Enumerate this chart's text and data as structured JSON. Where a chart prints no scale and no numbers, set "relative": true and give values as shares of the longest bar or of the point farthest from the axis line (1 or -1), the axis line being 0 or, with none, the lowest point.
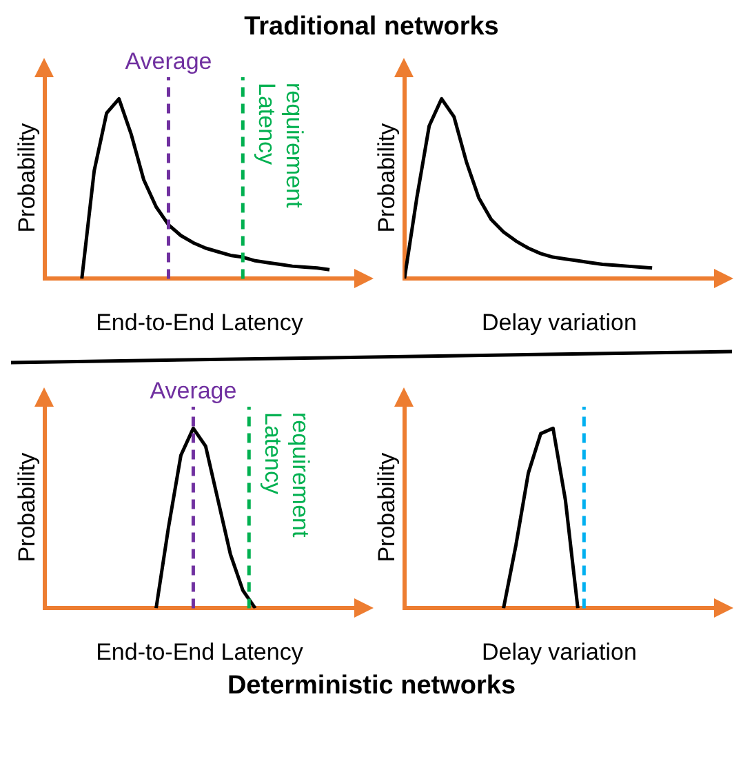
{
  "chart_data": [
    {
      "type": "line",
      "title": "Traditional networks",
      "xlabel": "End-to-End Latency",
      "ylabel": "Probability",
      "relative": true,
      "marker": "none",
      "annotations": [
        "Average",
        "Latency requirement"
      ],
      "categories": [
        null,
        null,
        null,
        null,
        null,
        null,
        null,
        null,
        null,
        null,
        null,
        null,
        null,
        null,
        null,
        null,
        null,
        null,
        null,
        null,
        null
      ],
      "series": [
        {
          "color": "#000000",
          "values": [
            0,
            0.6,
            0.92,
            1,
            0.8,
            0.55,
            0.4,
            0.3,
            0.24,
            0.2,
            0.17,
            0.15,
            0.13,
            0.12,
            0.1,
            0.09,
            0.08,
            0.07,
            0.065,
            0.06,
            0.05
          ]
        }
      ]
    },
    {
      "type": "line",
      "xlabel": "Delay variation",
      "ylabel": "Probability",
      "relative": true,
      "marker": "none",
      "categories": [
        null,
        null,
        null,
        null,
        null,
        null,
        null,
        null,
        null,
        null,
        null,
        null,
        null,
        null,
        null,
        null,
        null,
        null,
        null,
        null,
        null
      ],
      "series": [
        {
          "color": "#000000",
          "values": [
            0,
            0.45,
            0.85,
            1,
            0.9,
            0.65,
            0.45,
            0.33,
            0.26,
            0.21,
            0.17,
            0.14,
            0.12,
            0.11,
            0.1,
            0.09,
            0.08,
            0.075,
            0.07,
            0.065,
            0.06
          ]
        }
      ]
    },
    {
      "type": "line",
      "title": "Deterministic networks",
      "xlabel": "End-to-End Latency",
      "ylabel": "Probability",
      "relative": true,
      "marker": "none",
      "annotations": [
        "Average",
        "Latency requirement"
      ],
      "categories": [
        null,
        null,
        null,
        null,
        null,
        null,
        null,
        null,
        null
      ],
      "series": [
        {
          "color": "#000000",
          "values": [
            0,
            0.45,
            0.85,
            1,
            0.9,
            0.6,
            0.3,
            0.1,
            0
          ]
        }
      ]
    },
    {
      "type": "line",
      "xlabel": "Delay variation",
      "ylabel": "Probability",
      "relative": true,
      "marker": "none",
      "categories": [
        null,
        null,
        null,
        null,
        null,
        null,
        null
      ],
      "series": [
        {
          "color": "#000000",
          "values": [
            0,
            0.35,
            0.75,
            0.97,
            1,
            0.6,
            0
          ]
        }
      ]
    }
  ]
}
